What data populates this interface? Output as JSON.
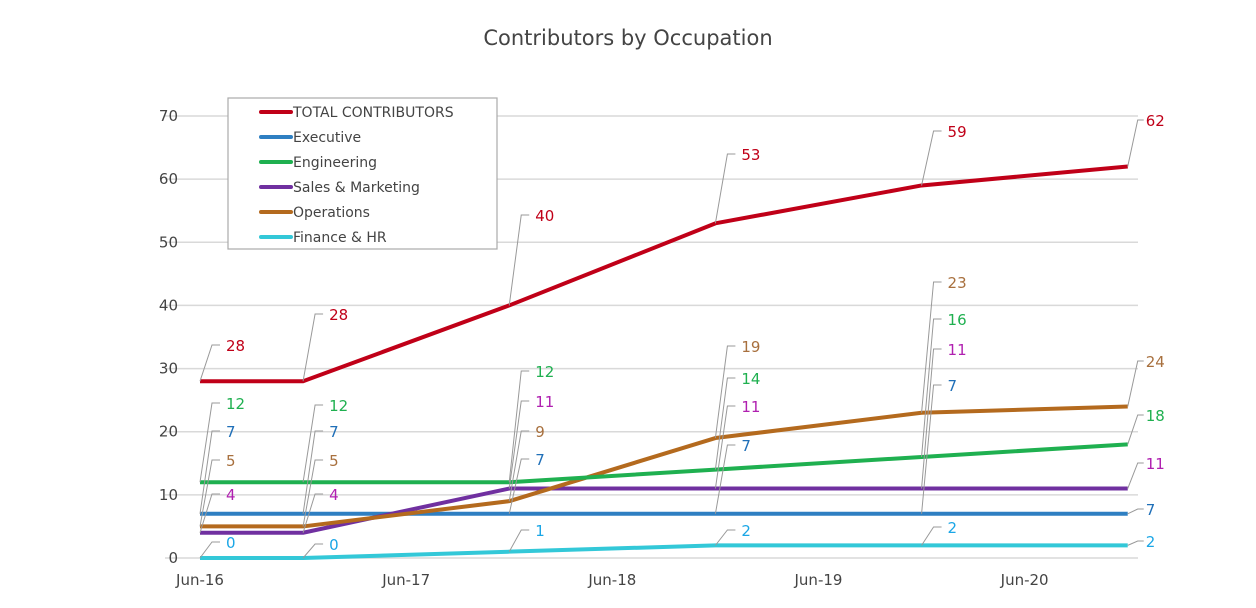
{
  "chart_data": {
    "type": "line",
    "title": "Contributors by Occupation",
    "xlabel": "",
    "ylabel": "",
    "x": [
      "Jun-16",
      "Dec-16",
      "Dec-17",
      "Dec-18",
      "Dec-19",
      "Dec-20"
    ],
    "x_tick_labels": [
      "Jun-16",
      "Jun-17",
      "Jun-18",
      "Jun-19",
      "Jun-20"
    ],
    "ylim": [
      0,
      70
    ],
    "y_ticks": [
      0,
      10,
      20,
      30,
      40,
      50,
      60,
      70
    ],
    "grid": "horizontal",
    "legend_position": "top-left",
    "data_labels": true,
    "series": [
      {
        "name": "TOTAL CONTRIBUTORS",
        "color": "#c00018",
        "label_color": "#c00018",
        "values": [
          28,
          28,
          40,
          53,
          59,
          62
        ]
      },
      {
        "name": "Executive",
        "color": "#2e7fc2",
        "label_color": "#1f6fb8",
        "values": [
          7,
          7,
          7,
          7,
          7,
          7
        ]
      },
      {
        "name": "Engineering",
        "color": "#1fb050",
        "label_color": "#1fb050",
        "values": [
          12,
          12,
          12,
          14,
          16,
          18
        ]
      },
      {
        "name": "Sales & Marketing",
        "color": "#7030a0",
        "label_color": "#b020b0",
        "values": [
          4,
          4,
          11,
          11,
          11,
          11
        ]
      },
      {
        "name": "Operations",
        "color": "#b46a1e",
        "label_color": "#a8703e",
        "values": [
          5,
          5,
          9,
          19,
          23,
          24
        ]
      },
      {
        "name": "Finance & HR",
        "color": "#33c8d8",
        "label_color": "#1aa6e6",
        "values": [
          0,
          0,
          1,
          2,
          2,
          2
        ]
      }
    ]
  }
}
